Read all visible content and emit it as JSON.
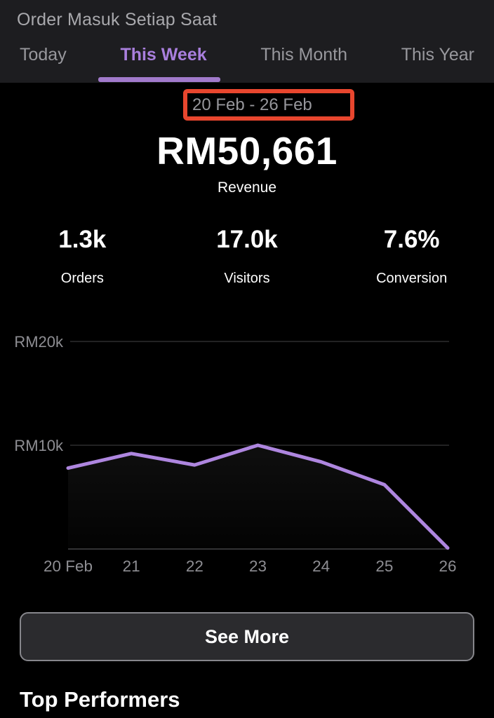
{
  "header": {
    "title": "Order Masuk Setiap Saat"
  },
  "tabs": {
    "items": [
      {
        "label": "Today",
        "active": false
      },
      {
        "label": "This Week",
        "active": true
      },
      {
        "label": "This Month",
        "active": false
      },
      {
        "label": "This Year",
        "active": false
      }
    ]
  },
  "summary": {
    "date_range": "20 Feb - 26 Feb",
    "revenue_value": "RM50,661",
    "revenue_label": "Revenue",
    "stats": [
      {
        "value": "1.3k",
        "label": "Orders"
      },
      {
        "value": "17.0k",
        "label": "Visitors"
      },
      {
        "value": "7.6%",
        "label": "Conversion"
      }
    ]
  },
  "chart_data": {
    "type": "line",
    "title": "",
    "x": [
      "20 Feb",
      "21",
      "22",
      "23",
      "24",
      "25",
      "26"
    ],
    "series": [
      {
        "name": "Revenue",
        "values": [
          7800,
          9200,
          8100,
          10000,
          8400,
          6200,
          100
        ]
      }
    ],
    "yticks": [
      {
        "label": "RM20k",
        "value": 20000
      },
      {
        "label": "RM10k",
        "value": 10000
      }
    ],
    "ylim": [
      0,
      22500
    ],
    "grid": true,
    "legend_position": "none"
  },
  "buttons": {
    "see_more": "See More"
  },
  "sections": {
    "top_performers": "Top Performers"
  },
  "colors": {
    "accent_purple": "#a97fdd",
    "chart_line": "#ae86df",
    "annotation_red": "#e8462e",
    "muted_text": "#8e8e93",
    "header_bg": "#1d1d20",
    "button_bg": "#2b2b2e"
  }
}
